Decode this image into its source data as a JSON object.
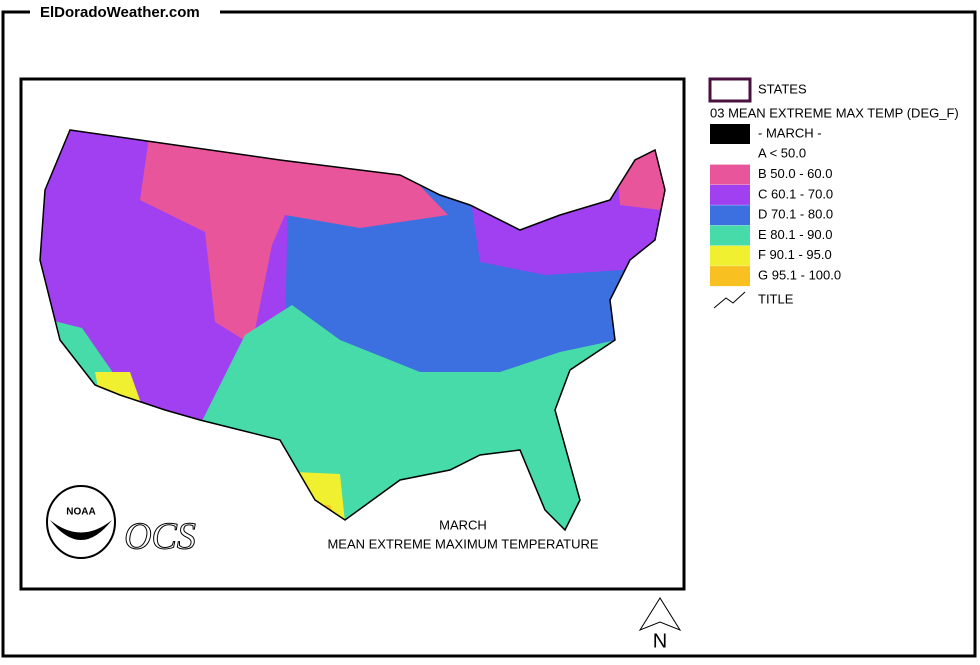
{
  "site": "ElDoradoWeather.com",
  "legend": {
    "states": "STATES",
    "layer": "03 MEAN EXTREME MAX TEMP (DEG_F)",
    "items": [
      {
        "label": "- MARCH -",
        "color": "#000000"
      },
      {
        "label": "A < 50.0",
        "color": "#ffffff"
      },
      {
        "label": "B 50.0 - 60.0",
        "color": "#e8559a"
      },
      {
        "label": "C 60.1 - 70.0",
        "color": "#a040f0"
      },
      {
        "label": "D 70.1 - 80.0",
        "color": "#3c6fe0"
      },
      {
        "label": "E 80.1 - 90.0",
        "color": "#46dba8"
      },
      {
        "label": "F 90.1 - 95.0",
        "color": "#f0f030"
      },
      {
        "label": "G 95.1 - 100.0",
        "color": "#f8c020"
      }
    ],
    "title": "TITLE"
  },
  "map": {
    "caption_line1": "MARCH",
    "caption_line2": "MEAN EXTREME MAXIMUM TEMPERATURE",
    "logo_text": "OCS",
    "noaa": "NOAA",
    "north": "N"
  }
}
